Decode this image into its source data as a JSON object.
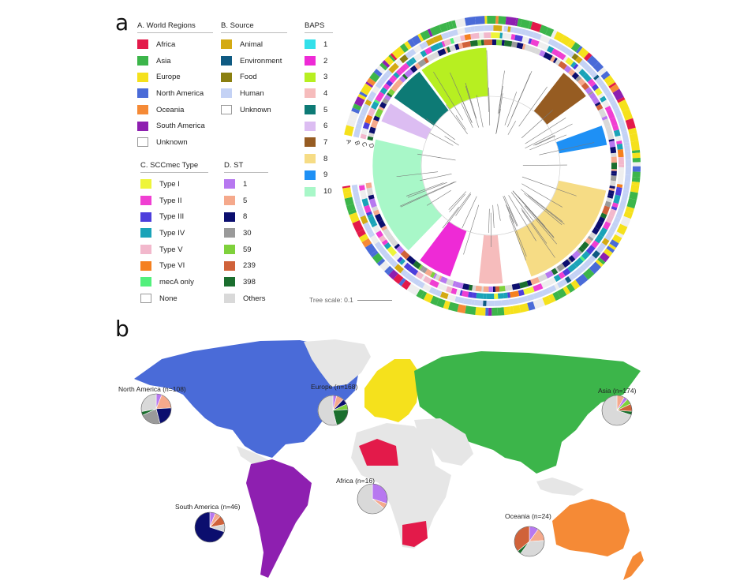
{
  "panel_a_label": "a",
  "panel_b_label": "b",
  "legends": {
    "world_regions": {
      "title": "A. World Regions",
      "items": [
        {
          "label": "Africa",
          "color": "#e31a4a"
        },
        {
          "label": "Asia",
          "color": "#3cb54a"
        },
        {
          "label": "Europe",
          "color": "#f5e11c"
        },
        {
          "label": "North America",
          "color": "#4a6bd8"
        },
        {
          "label": "Oceania",
          "color": "#f58a36"
        },
        {
          "label": "South America",
          "color": "#8e1fb0"
        },
        {
          "label": "Unknown",
          "color": "#ffffff"
        }
      ]
    },
    "source": {
      "title": "B. Source",
      "items": [
        {
          "label": "Animal",
          "color": "#d4aa13"
        },
        {
          "label": "Environment",
          "color": "#0f5a82"
        },
        {
          "label": "Food",
          "color": "#8a7f10"
        },
        {
          "label": "Human",
          "color": "#c4d2f5"
        },
        {
          "label": "Unknown",
          "color": "#ffffff"
        }
      ]
    },
    "baps": {
      "title": "BAPS",
      "items": [
        {
          "label": "1",
          "color": "#33e0ea"
        },
        {
          "label": "2",
          "color": "#ee2ad6"
        },
        {
          "label": "3",
          "color": "#b7ef21"
        },
        {
          "label": "4",
          "color": "#f6bcbc"
        },
        {
          "label": "5",
          "color": "#0d7a75"
        },
        {
          "label": "6",
          "color": "#dcbdf2"
        },
        {
          "label": "7",
          "color": "#965c22"
        },
        {
          "label": "8",
          "color": "#f6dc85"
        },
        {
          "label": "9",
          "color": "#1e90f5"
        },
        {
          "label": "10",
          "color": "#a8f7c8"
        }
      ]
    },
    "sccmec": {
      "title": "C. SCCmec Type",
      "items": [
        {
          "label": "Type I",
          "color": "#eef53a"
        },
        {
          "label": "Type II",
          "color": "#f03fd2"
        },
        {
          "label": "Type III",
          "color": "#4d3edc"
        },
        {
          "label": "Type IV",
          "color": "#1aa3b8"
        },
        {
          "label": "Type V",
          "color": "#f2b8cc"
        },
        {
          "label": "Type VI",
          "color": "#f5801f"
        },
        {
          "label": "mecA only",
          "color": "#52f07c"
        },
        {
          "label": "None",
          "color": "#ffffff"
        }
      ]
    },
    "st": {
      "title": "D. ST",
      "items": [
        {
          "label": "1",
          "color": "#b778f0"
        },
        {
          "label": "5",
          "color": "#f5a98c"
        },
        {
          "label": "8",
          "color": "#0b0e6e"
        },
        {
          "label": "30",
          "color": "#9a9a9a"
        },
        {
          "label": "59",
          "color": "#7fd13c"
        },
        {
          "label": "239",
          "color": "#d0623a"
        },
        {
          "label": "398",
          "color": "#1b6e2e"
        },
        {
          "label": "Others",
          "color": "#d9d9d9"
        }
      ]
    }
  },
  "tree": {
    "scale_label": "Tree scale: 0.1",
    "ring_labels": [
      "A",
      "B",
      "C",
      "D"
    ]
  },
  "map": {
    "regions": [
      {
        "label": "North America (n=108)",
        "pie": [
          {
            "v": 6,
            "c": "#b778f0"
          },
          {
            "v": 18,
            "c": "#f5a98c"
          },
          {
            "v": 22,
            "c": "#0b0e6e"
          },
          {
            "v": 22,
            "c": "#9a9a9a"
          },
          {
            "v": 4,
            "c": "#1b6e2e"
          },
          {
            "v": 28,
            "c": "#d9d9d9"
          }
        ]
      },
      {
        "label": "Europe (n=168)",
        "pie": [
          {
            "v": 4,
            "c": "#b778f0"
          },
          {
            "v": 8,
            "c": "#f5a98c"
          },
          {
            "v": 6,
            "c": "#0b0e6e"
          },
          {
            "v": 6,
            "c": "#7fd13c"
          },
          {
            "v": 22,
            "c": "#1b6e2e"
          },
          {
            "v": 54,
            "c": "#d9d9d9"
          }
        ]
      },
      {
        "label": "Asia (n=174)",
        "pie": [
          {
            "v": 8,
            "c": "#f5a98c"
          },
          {
            "v": 4,
            "c": "#b778f0"
          },
          {
            "v": 6,
            "c": "#7fd13c"
          },
          {
            "v": 8,
            "c": "#d0623a"
          },
          {
            "v": 4,
            "c": "#1b6e2e"
          },
          {
            "v": 70,
            "c": "#d9d9d9"
          }
        ]
      },
      {
        "label": "Africa (n=16)",
        "pie": [
          {
            "v": 30,
            "c": "#b778f0"
          },
          {
            "v": 6,
            "c": "#f5a98c"
          },
          {
            "v": 64,
            "c": "#d9d9d9"
          }
        ]
      },
      {
        "label": "South America (n=46)",
        "pie": [
          {
            "v": 6,
            "c": "#b778f0"
          },
          {
            "v": 6,
            "c": "#f5a98c"
          },
          {
            "v": 10,
            "c": "#d0623a"
          },
          {
            "v": 8,
            "c": "#d9d9d9"
          },
          {
            "v": 70,
            "c": "#0b0e6e"
          }
        ]
      },
      {
        "label": "Oceania (n=24)",
        "pie": [
          {
            "v": 10,
            "c": "#b778f0"
          },
          {
            "v": 14,
            "c": "#f5a98c"
          },
          {
            "v": 36,
            "c": "#d9d9d9"
          },
          {
            "v": 4,
            "c": "#1b6e2e"
          },
          {
            "v": 36,
            "c": "#d0623a"
          }
        ]
      }
    ]
  }
}
